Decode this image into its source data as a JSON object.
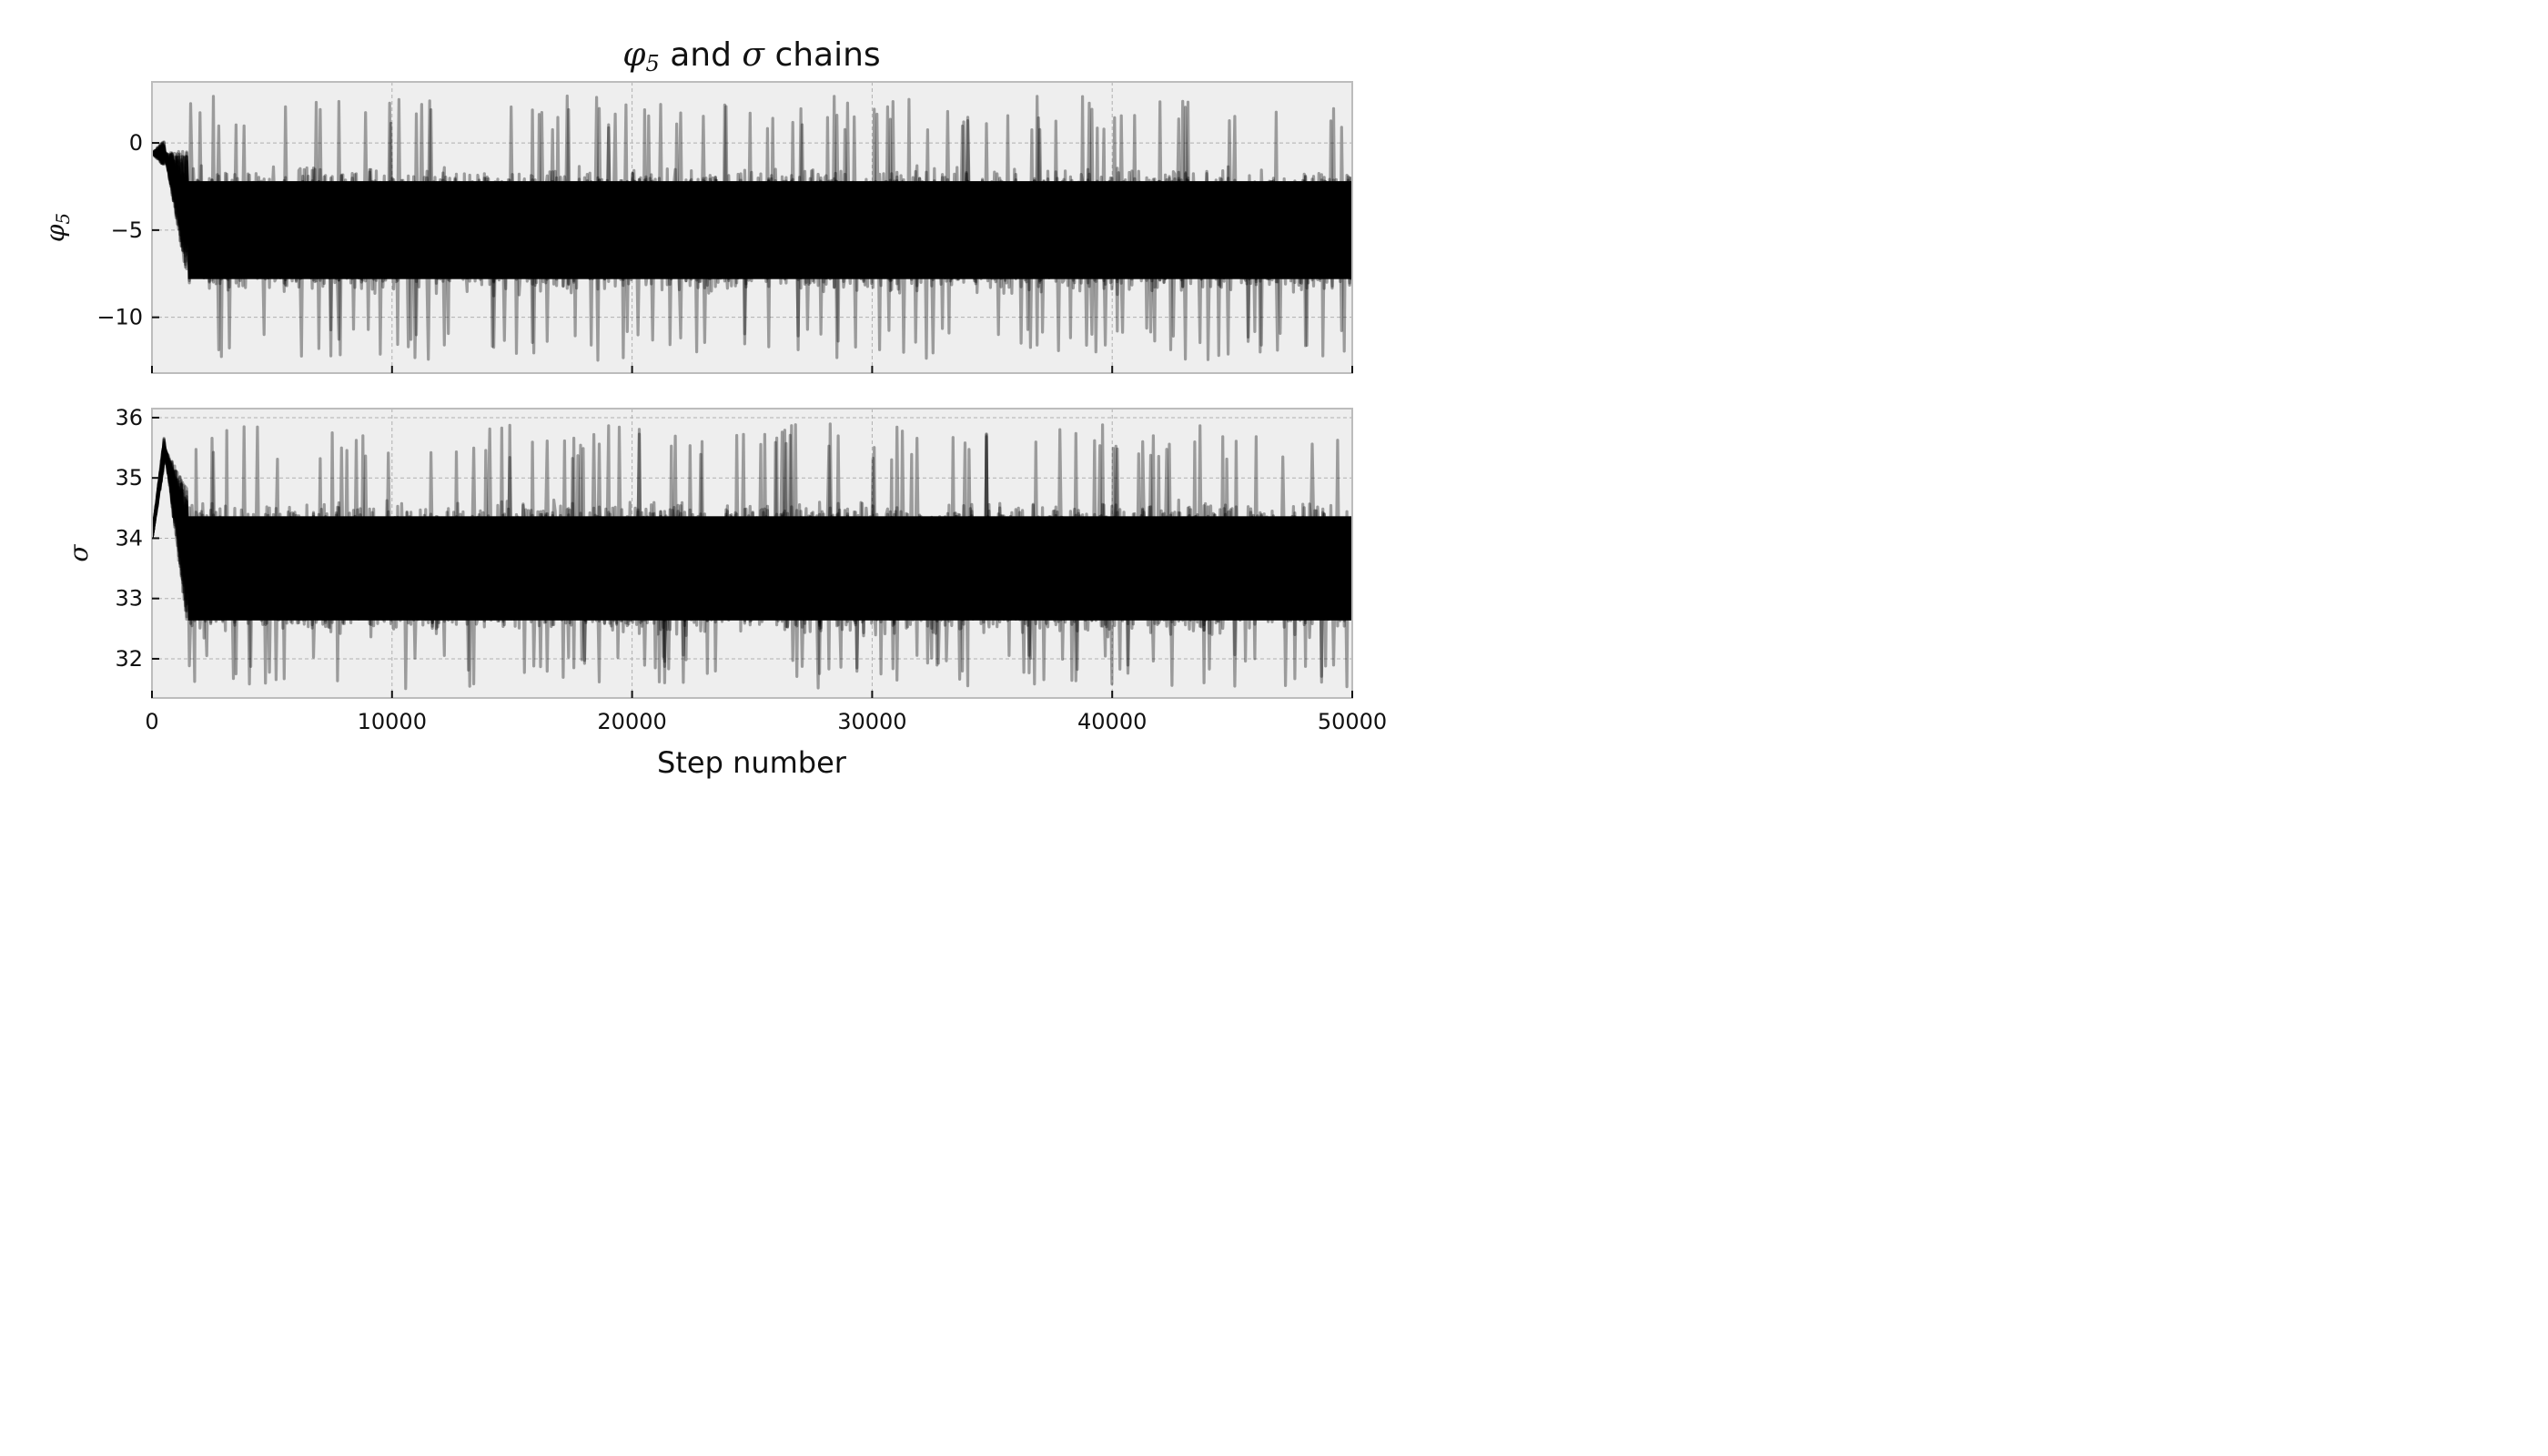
{
  "chart_data": {
    "type": "line",
    "title": {
      "symbol_a": "φ",
      "subscript_a": "5",
      "joiner": " and ",
      "symbol_b": "σ",
      "suffix": " chains"
    },
    "xlabel": "Step number",
    "xlim": [
      0,
      50000
    ],
    "x_ticks": [
      0,
      10000,
      20000,
      30000,
      40000,
      50000
    ],
    "grid": true,
    "line_color": "#000000",
    "line_alpha": 0.35,
    "background_color": "#eeeeee",
    "panels": [
      {
        "ylabel_symbol": "φ",
        "ylabel_subscript": "5",
        "ylim": [
          -13.2,
          3.5
        ],
        "y_ticks": [
          0,
          -5,
          -10
        ],
        "y_tick_labels": [
          "0",
          "−5",
          "−10"
        ],
        "initial_value": -0.6,
        "burn_in_end": 1500,
        "peak_value": -0.6,
        "mean": -5.0,
        "band_low": -8.2,
        "band_high": -0.4,
        "extreme_low": -12.5,
        "extreme_high": 2.7
      },
      {
        "ylabel_symbol": "σ",
        "ylabel_subscript": "",
        "ylim": [
          31.35,
          36.15
        ],
        "y_ticks": [
          32,
          33,
          34,
          35,
          36
        ],
        "y_tick_labels": [
          "32",
          "33",
          "34",
          "35",
          "36"
        ],
        "initial_value": 34.0,
        "burn_in_end": 1500,
        "peak_value": 35.5,
        "mean": 33.5,
        "band_low": 32.4,
        "band_high": 34.8,
        "extreme_low": 31.5,
        "extreme_high": 35.9
      }
    ]
  }
}
